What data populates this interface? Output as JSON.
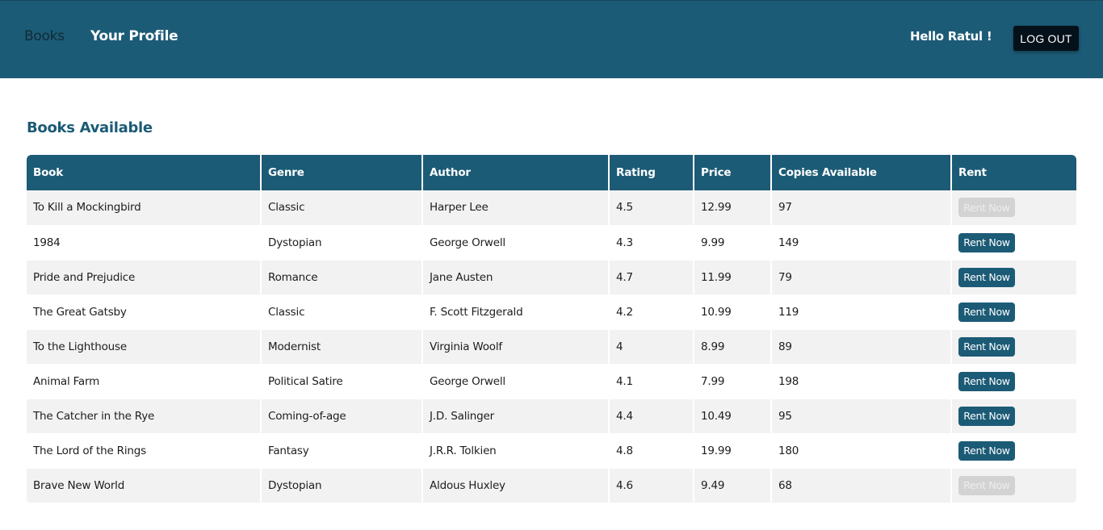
{
  "nav": {
    "books_label": "Books",
    "profile_label": "Your Profile",
    "greeting": "Hello Ratul !",
    "logout_label": "LOG OUT"
  },
  "colors": {
    "primary": "#1c5b76",
    "logout_bg": "#04101a",
    "row_alt": "#f2f2f2",
    "disabled": "#d3d3d3"
  },
  "section_title": "Books Available",
  "table": {
    "columns": [
      "Book",
      "Genre",
      "Author",
      "Rating",
      "Price",
      "Copies Available",
      "Rent"
    ],
    "rows": [
      {
        "book": "To Kill a Mockingbird",
        "genre": "Classic",
        "author": "Harper Lee",
        "rating": "4.5",
        "price": "12.99",
        "copies": "97",
        "rent_label": "Rent Now",
        "rent_enabled": false
      },
      {
        "book": "1984",
        "genre": "Dystopian",
        "author": "George Orwell",
        "rating": "4.3",
        "price": "9.99",
        "copies": "149",
        "rent_label": "Rent Now",
        "rent_enabled": true
      },
      {
        "book": "Pride and Prejudice",
        "genre": "Romance",
        "author": "Jane Austen",
        "rating": "4.7",
        "price": "11.99",
        "copies": "79",
        "rent_label": "Rent Now",
        "rent_enabled": true
      },
      {
        "book": "The Great Gatsby",
        "genre": "Classic",
        "author": "F. Scott Fitzgerald",
        "rating": "4.2",
        "price": "10.99",
        "copies": "119",
        "rent_label": "Rent Now",
        "rent_enabled": true
      },
      {
        "book": "To the Lighthouse",
        "genre": "Modernist",
        "author": "Virginia Woolf",
        "rating": "4",
        "price": "8.99",
        "copies": "89",
        "rent_label": "Rent Now",
        "rent_enabled": true
      },
      {
        "book": "Animal Farm",
        "genre": "Political Satire",
        "author": "George Orwell",
        "rating": "4.1",
        "price": "7.99",
        "copies": "198",
        "rent_label": "Rent Now",
        "rent_enabled": true
      },
      {
        "book": "The Catcher in the Rye",
        "genre": "Coming-of-age",
        "author": "J.D. Salinger",
        "rating": "4.4",
        "price": "10.49",
        "copies": "95",
        "rent_label": "Rent Now",
        "rent_enabled": true
      },
      {
        "book": "The Lord of the Rings",
        "genre": "Fantasy",
        "author": "J.R.R. Tolkien",
        "rating": "4.8",
        "price": "19.99",
        "copies": "180",
        "rent_label": "Rent Now",
        "rent_enabled": true
      },
      {
        "book": "Brave New World",
        "genre": "Dystopian",
        "author": "Aldous Huxley",
        "rating": "4.6",
        "price": "9.49",
        "copies": "68",
        "rent_label": "Rent Now",
        "rent_enabled": false
      }
    ]
  }
}
